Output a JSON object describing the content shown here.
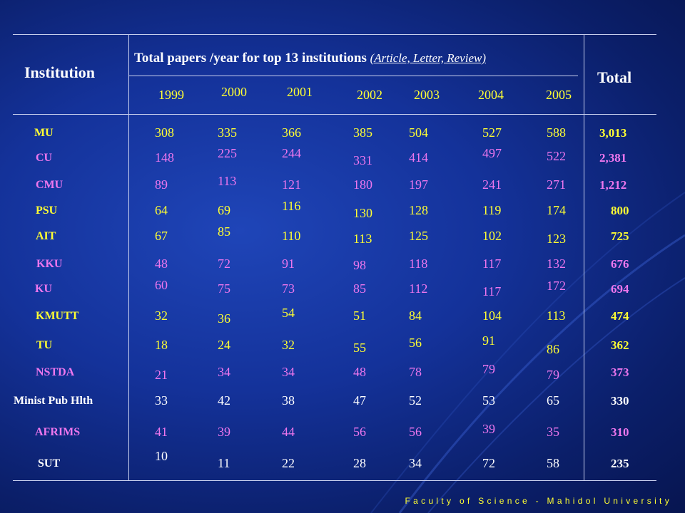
{
  "title": "Total papers /year for top 13 institutions",
  "subtitle": "(Article, Letter, Review)",
  "institution_header": "Institution",
  "total_header": "Total",
  "years": [
    "1999",
    "2000",
    "2001",
    "2002",
    "2003",
    "2004",
    "2005"
  ],
  "footer": "Faculty of Science - Mahidol University",
  "colors": {
    "yellow": "#ffff33",
    "pink": "#ee77ee",
    "white": "#ffffff"
  },
  "rows": [
    {
      "inst": "MU",
      "color": "yellow",
      "values": [
        "308",
        "335",
        "366",
        "385",
        "504",
        "527",
        "588"
      ],
      "total": "3,013"
    },
    {
      "inst": "CU",
      "color": "pink",
      "values": [
        "148",
        "225",
        "244",
        "331",
        "414",
        "497",
        "522"
      ],
      "total": "2,381"
    },
    {
      "inst": "CMU",
      "color": "pink",
      "values": [
        "89",
        "113",
        "121",
        "180",
        "197",
        "241",
        "271"
      ],
      "total": "1,212"
    },
    {
      "inst": "PSU",
      "color": "yellow",
      "values": [
        "64",
        "69",
        "116",
        "130",
        "128",
        "119",
        "174"
      ],
      "total": "800"
    },
    {
      "inst": "AIT",
      "color": "yellow",
      "values": [
        "67",
        "85",
        "110",
        "113",
        "125",
        "102",
        "123"
      ],
      "total": "725"
    },
    {
      "inst": "KKU",
      "color": "pink",
      "values": [
        "48",
        "72",
        "91",
        "98",
        "118",
        "117",
        "132"
      ],
      "total": "676"
    },
    {
      "inst": "KU",
      "color": "pink",
      "values": [
        "60",
        "75",
        "73",
        "85",
        "112",
        "117",
        "172"
      ],
      "total": "694"
    },
    {
      "inst": "KMUTT",
      "color": "yellow",
      "values": [
        "32",
        "36",
        "54",
        "51",
        "84",
        "104",
        "113"
      ],
      "total": "474"
    },
    {
      "inst": "TU",
      "color": "yellow",
      "values": [
        "18",
        "24",
        "32",
        "55",
        "56",
        "91",
        "86"
      ],
      "total": "362"
    },
    {
      "inst": "NSTDA",
      "color": "pink",
      "values": [
        "21",
        "34",
        "34",
        "48",
        "78",
        "79",
        "79"
      ],
      "total": "373"
    },
    {
      "inst": "Minist Pub Hlth",
      "color": "white",
      "values": [
        "33",
        "42",
        "38",
        "47",
        "52",
        "53",
        "65"
      ],
      "total": "330"
    },
    {
      "inst": "AFRIMS",
      "color": "pink",
      "values": [
        "41",
        "39",
        "44",
        "56",
        "56",
        "39",
        "35"
      ],
      "total": "310"
    },
    {
      "inst": "SUT",
      "color": "white",
      "values": [
        "10",
        "11",
        "22",
        "28",
        "34",
        "72",
        "58"
      ],
      "total": "235"
    }
  ]
}
